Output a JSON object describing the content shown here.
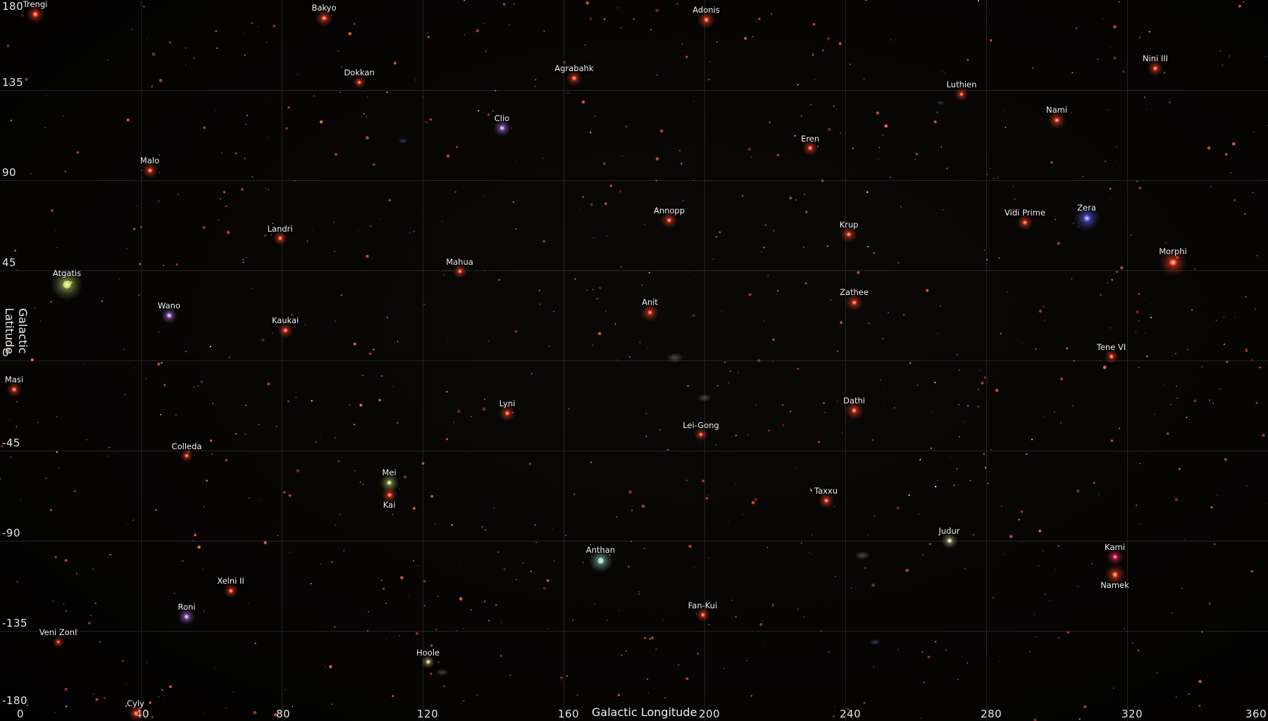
{
  "map": {
    "x_axis_title": "Galactic Longitude",
    "y_axis_title": "Galactic Latitude",
    "x_ticks": [
      0,
      40,
      80,
      120,
      160,
      200,
      240,
      280,
      320,
      360
    ],
    "y_ticks": [
      180,
      135,
      90,
      45,
      0,
      -45,
      -90,
      -135,
      -180
    ],
    "x_range": [
      0,
      360
    ],
    "y_range": [
      -180,
      180
    ]
  },
  "colors": {
    "red": "#ff4a2e",
    "blue": "#6a6aff",
    "violet": "#c88aff",
    "green": "#c6e070",
    "cyan": "#9ad8c8",
    "gold": "#d8c890",
    "pink": "#ff3a6a",
    "grid": "#7a7a7a"
  },
  "systems": [
    {
      "name": "Trengi",
      "lon": 10,
      "lat": 173,
      "color": "red",
      "size": 1.2,
      "label_pos": "above"
    },
    {
      "name": "Bakyo",
      "lon": 92,
      "lat": 171,
      "color": "red",
      "size": 1.2,
      "label_pos": "above"
    },
    {
      "name": "Adonis",
      "lon": 200.5,
      "lat": 170,
      "color": "red",
      "size": 1.2,
      "label_pos": "above"
    },
    {
      "name": "Nini III",
      "lon": 328,
      "lat": 146,
      "color": "red",
      "size": 1.0,
      "label_pos": "above"
    },
    {
      "name": "Dokkan",
      "lon": 102,
      "lat": 139,
      "color": "red",
      "size": 0.7,
      "label_pos": "above"
    },
    {
      "name": "Agrabahk",
      "lon": 163,
      "lat": 141,
      "color": "red",
      "size": 1.0,
      "label_pos": "above"
    },
    {
      "name": "Luthien",
      "lon": 273,
      "lat": 133,
      "color": "red",
      "size": 0.8,
      "label_pos": "above"
    },
    {
      "name": "Clio",
      "lon": 142.5,
      "lat": 116,
      "color": "violet",
      "size": 1.1,
      "label_pos": "above"
    },
    {
      "name": "Nami",
      "lon": 300,
      "lat": 120,
      "color": "red",
      "size": 1.2,
      "label_pos": "above"
    },
    {
      "name": "Eren",
      "lon": 230,
      "lat": 106,
      "color": "red",
      "size": 0.9,
      "label_pos": "above"
    },
    {
      "name": "Malo",
      "lon": 42.5,
      "lat": 95,
      "color": "red",
      "size": 1.0,
      "label_pos": "above"
    },
    {
      "name": "Annopp",
      "lon": 190,
      "lat": 70,
      "color": "red",
      "size": 1.1,
      "label_pos": "above"
    },
    {
      "name": "Vidi Prime",
      "lon": 291,
      "lat": 69,
      "color": "red",
      "size": 1.0,
      "label_pos": "above"
    },
    {
      "name": "Zera",
      "lon": 308.5,
      "lat": 71,
      "color": "blue",
      "size": 2.0,
      "label_pos": "above"
    },
    {
      "name": "Krup",
      "lon": 241,
      "lat": 63,
      "color": "red",
      "size": 1.1,
      "label_pos": "above"
    },
    {
      "name": "Landri",
      "lon": 79.5,
      "lat": 61,
      "color": "red",
      "size": 0.8,
      "label_pos": "above"
    },
    {
      "name": "Morphi",
      "lon": 333,
      "lat": 49,
      "color": "red",
      "size": 2.2,
      "label_pos": "above"
    },
    {
      "name": "Mahua",
      "lon": 130.5,
      "lat": 44.5,
      "color": "red",
      "size": 0.8,
      "label_pos": "above"
    },
    {
      "name": "Atgatis",
      "lon": 19,
      "lat": 38,
      "color": "green",
      "size": 2.6,
      "label_pos": "above"
    },
    {
      "name": "Wano",
      "lon": 48,
      "lat": 22.5,
      "color": "violet",
      "size": 0.9,
      "label_pos": "above"
    },
    {
      "name": "Anit",
      "lon": 184.5,
      "lat": 24,
      "color": "red",
      "size": 1.2,
      "label_pos": "above"
    },
    {
      "name": "Zathee",
      "lon": 242.5,
      "lat": 29,
      "color": "red",
      "size": 1.2,
      "label_pos": "above"
    },
    {
      "name": "Kaukai",
      "lon": 81,
      "lat": 15,
      "color": "red",
      "size": 0.9,
      "label_pos": "above"
    },
    {
      "name": "Tene VI",
      "lon": 315.5,
      "lat": 2,
      "color": "red",
      "size": 0.8,
      "label_pos": "above"
    },
    {
      "name": "Masi",
      "lon": 4,
      "lat": -14.5,
      "color": "red",
      "size": 0.9,
      "label_pos": "above"
    },
    {
      "name": "Lyni",
      "lon": 144,
      "lat": -26.5,
      "color": "red",
      "size": 1.0,
      "label_pos": "above"
    },
    {
      "name": "Dathi",
      "lon": 242.5,
      "lat": -25,
      "color": "red",
      "size": 1.3,
      "label_pos": "above"
    },
    {
      "name": "Lei-Gong",
      "lon": 199,
      "lat": -37,
      "color": "red",
      "size": 0.7,
      "label_pos": "above"
    },
    {
      "name": "Colleda",
      "lon": 53,
      "lat": -47.5,
      "color": "red",
      "size": 0.6,
      "label_pos": "above"
    },
    {
      "name": "Mei",
      "lon": 110.5,
      "lat": -61,
      "color": "green",
      "size": 1.3,
      "label_pos": "above"
    },
    {
      "name": "Kai",
      "lon": 110.5,
      "lat": -67,
      "color": "red",
      "size": 1.0,
      "label_pos": "below"
    },
    {
      "name": "Taxxu",
      "lon": 234.5,
      "lat": -70,
      "color": "red",
      "size": 1.0,
      "label_pos": "above"
    },
    {
      "name": "Judur",
      "lon": 269.5,
      "lat": -90,
      "color": "gold",
      "size": 1.0,
      "label_pos": "above"
    },
    {
      "name": "Anthan",
      "lon": 170.5,
      "lat": -100,
      "color": "cyan",
      "size": 1.8,
      "label_pos": "above"
    },
    {
      "name": "Kami",
      "lon": 316.5,
      "lat": -98,
      "color": "pink",
      "size": 1.1,
      "label_pos": "above"
    },
    {
      "name": "Namek",
      "lon": 316.5,
      "lat": -107,
      "color": "red",
      "size": 1.5,
      "label_pos": "below"
    },
    {
      "name": "Xelni II",
      "lon": 65.5,
      "lat": -115,
      "color": "red",
      "size": 0.8,
      "label_pos": "above"
    },
    {
      "name": "Fan-Kui",
      "lon": 199.5,
      "lat": -127,
      "color": "red",
      "size": 0.8,
      "label_pos": "above"
    },
    {
      "name": "Roni",
      "lon": 53,
      "lat": -128,
      "color": "violet",
      "size": 1.1,
      "label_pos": "above"
    },
    {
      "name": "Veni Zoni",
      "lon": 16.5,
      "lat": -140.5,
      "color": "red",
      "size": 0.6,
      "label_pos": "above"
    },
    {
      "name": "Hoole",
      "lon": 121.5,
      "lat": -150.5,
      "color": "gold",
      "size": 0.7,
      "label_pos": "above"
    },
    {
      "name": "Cyly",
      "lon": 38.5,
      "lat": -176,
      "color": "red",
      "size": 1.0,
      "label_pos": "above"
    }
  ]
}
